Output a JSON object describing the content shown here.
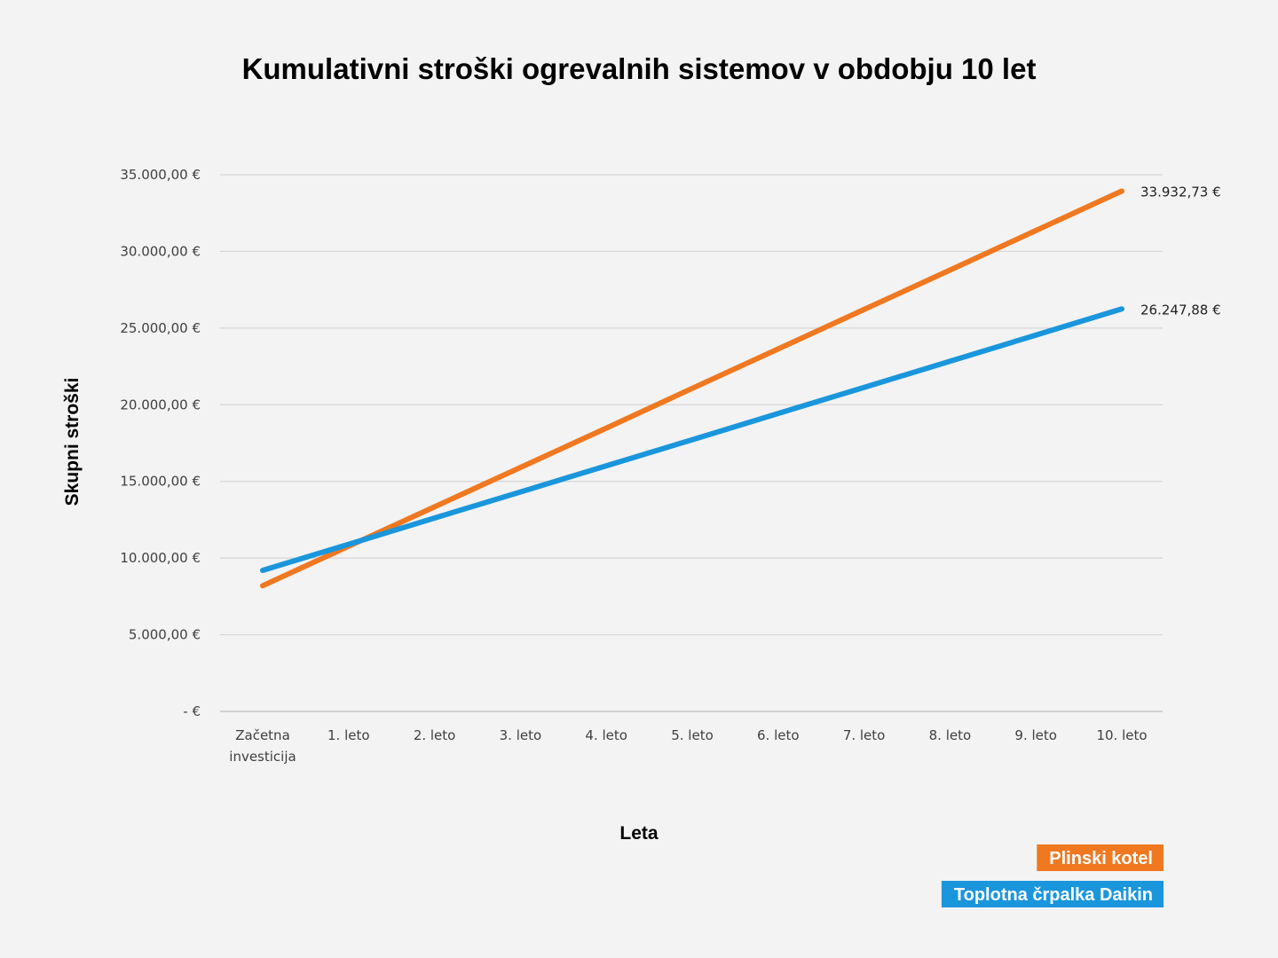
{
  "chart_data": {
    "type": "line",
    "title": "Kumulativni stroški ogrevalnih sistemov v obdobju 10 let",
    "xlabel": "Leta",
    "ylabel": "Skupni stroški",
    "categories": [
      [
        "Začetna",
        "investicija"
      ],
      [
        "1. leto"
      ],
      [
        "2. leto"
      ],
      [
        "3. leto"
      ],
      [
        "4. leto"
      ],
      [
        "5. leto"
      ],
      [
        "6. leto"
      ],
      [
        "7. leto"
      ],
      [
        "8. leto"
      ],
      [
        "9. leto"
      ],
      [
        "10. leto"
      ]
    ],
    "ylim": [
      0,
      35000
    ],
    "yticks": [
      0,
      5000,
      10000,
      15000,
      20000,
      25000,
      30000,
      35000
    ],
    "ytick_labels": [
      "-  €",
      "5.000,00 €",
      "10.000,00 €",
      "15.000,00 €",
      "20.000,00 €",
      "25.000,00 €",
      "30.000,00 €",
      "35.000,00 €"
    ],
    "grid": true,
    "legend_position": "bottom-right",
    "series": [
      {
        "name": "Plinski kotel",
        "color": "#f07820",
        "values": [
          8200,
          10770,
          13340,
          15910,
          18480,
          21070,
          23640,
          26210,
          28780,
          31360,
          33932.73
        ],
        "end_label": "33.932,73 €"
      },
      {
        "name": "Toplotna črpalka Daikin",
        "color": "#1a96dc",
        "values": [
          9200,
          10900,
          12610,
          14310,
          16020,
          17720,
          19430,
          21130,
          22840,
          24540,
          26247.88
        ],
        "end_label": "26.247,88 €"
      }
    ]
  }
}
